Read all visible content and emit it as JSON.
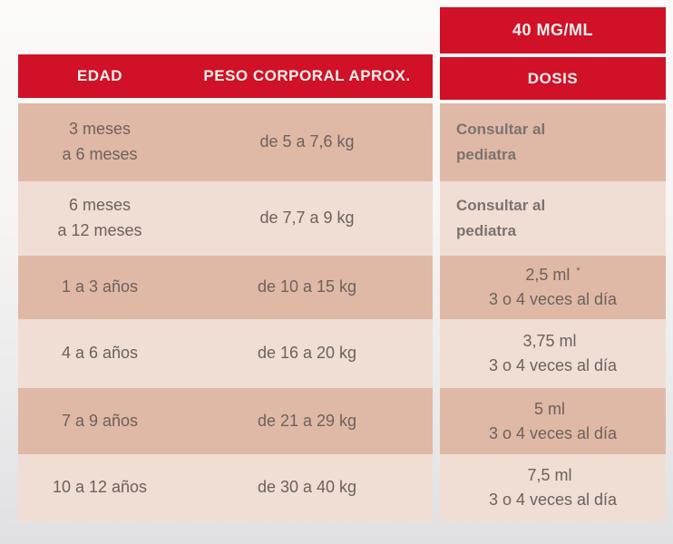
{
  "product": {
    "concentration_label": "40 MG/ML"
  },
  "table": {
    "headers": {
      "age": "EDAD",
      "weight": "PESO CORPORAL APROX.",
      "dose": "DOSIS"
    },
    "rows": [
      {
        "age": "3 meses\na 6 meses",
        "weight": "de 5 a 7,6 kg",
        "dose_line1": "Consultar al",
        "dose_line2": "pediatra",
        "dose_type": "consult"
      },
      {
        "age": "6 meses\na 12 meses",
        "weight": "de 7,7 a 9 kg",
        "dose_line1": "Consultar al",
        "dose_line2": "pediatra",
        "dose_type": "consult"
      },
      {
        "age": "1 a 3 años",
        "weight": "de 10 a 15 kg",
        "dose_line1": "2,5 ml",
        "dose_sup": "*",
        "dose_line2": "3 o 4 veces al día",
        "dose_type": "dosage"
      },
      {
        "age": "4 a 6 años",
        "weight": "de 16 a 20 kg",
        "dose_line1": "3,75 ml",
        "dose_line2": "3 o 4 veces al día",
        "dose_type": "dosage"
      },
      {
        "age": "7 a 9 años",
        "weight": "de 21 a 29 kg",
        "dose_line1": "5 ml",
        "dose_line2": "3 o 4 veces al día",
        "dose_type": "dosage"
      },
      {
        "age": "10 a 12 años",
        "weight": "de 30 a 40 kg",
        "dose_line1": "7,5 ml",
        "dose_line2": "3 o 4 veces al día",
        "dose_type": "dosage"
      }
    ]
  },
  "colors": {
    "accent_red": "#d01127",
    "row_dark": "#e0b8a6",
    "row_light": "#f0ddd4",
    "header_text": "#f8f0ec",
    "body_text": "#6b625d"
  }
}
